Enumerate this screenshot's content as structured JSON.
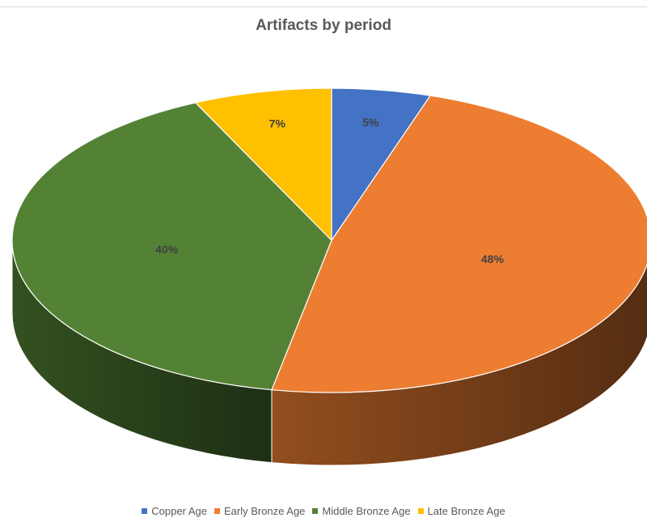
{
  "chart_data": {
    "type": "pie",
    "title": "Artifacts by period",
    "categories": [
      "Copper Age",
      "Early Bronze Age",
      "Middle Bronze Age",
      "Late Bronze Age"
    ],
    "values": [
      5,
      48,
      40,
      7
    ],
    "data_labels": [
      "5%",
      "48%",
      "40%",
      "7%"
    ],
    "colors": [
      "#4472C4",
      "#ED7D31",
      "#548235",
      "#FFC000"
    ],
    "legend_position": "bottom",
    "style": "3d"
  }
}
